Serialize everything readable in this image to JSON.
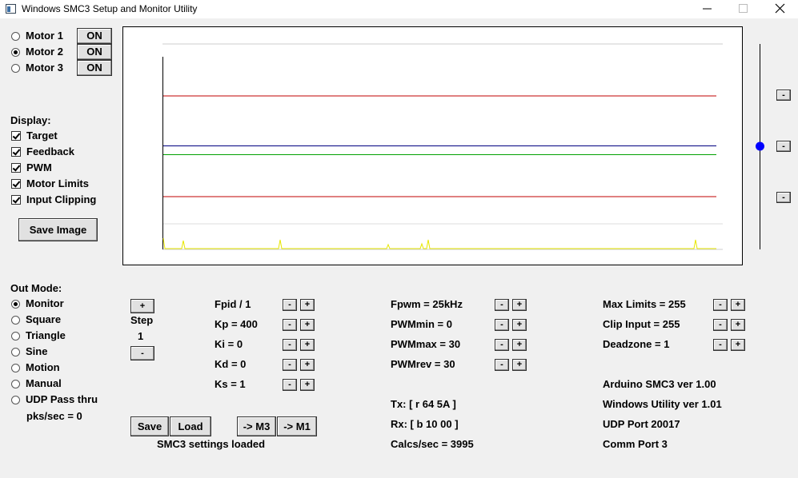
{
  "window": {
    "title": "Windows SMC3 Setup and Monitor Utility"
  },
  "motors": [
    {
      "label": "Motor 1",
      "button": "ON",
      "selected": false
    },
    {
      "label": "Motor 2",
      "button": "ON",
      "selected": true
    },
    {
      "label": "Motor 3",
      "button": "ON",
      "selected": false
    }
  ],
  "display": {
    "heading": "Display:",
    "options": [
      {
        "label": "Target",
        "checked": true
      },
      {
        "label": "Feedback",
        "checked": true
      },
      {
        "label": "PWM",
        "checked": true
      },
      {
        "label": "Motor Limits",
        "checked": true
      },
      {
        "label": "Input Clipping",
        "checked": true
      }
    ],
    "save_button": "Save Image"
  },
  "out_mode": {
    "heading": "Out Mode:",
    "options": [
      {
        "label": "Monitor",
        "selected": true
      },
      {
        "label": "Square",
        "selected": false
      },
      {
        "label": "Triangle",
        "selected": false
      },
      {
        "label": "Sine",
        "selected": false
      },
      {
        "label": "Motion",
        "selected": false
      },
      {
        "label": "Manual",
        "selected": false
      },
      {
        "label": "UDP Pass thru",
        "selected": false
      }
    ],
    "rate": "pks/sec = 0"
  },
  "step": {
    "plus": "+",
    "label": "Step",
    "value": 1,
    "minus": "-"
  },
  "pid": [
    {
      "label": "Fpid / 1",
      "minus": "-",
      "plus": "+"
    },
    {
      "label": "Kp = 400",
      "minus": "-",
      "plus": "+"
    },
    {
      "label": "Ki = 0",
      "minus": "-",
      "plus": "+"
    },
    {
      "label": "Kd = 0",
      "minus": "-",
      "plus": "+"
    },
    {
      "label": "Ks = 1",
      "minus": "-",
      "plus": "+"
    }
  ],
  "pwm": [
    {
      "label": "Fpwm = 25kHz",
      "minus": "-",
      "plus": "+"
    },
    {
      "label": "PWMmin = 0",
      "minus": "-",
      "plus": "+"
    },
    {
      "label": "PWMmax = 30",
      "minus": "-",
      "plus": "+"
    },
    {
      "label": "PWMrev = 30",
      "minus": "-",
      "plus": "+"
    }
  ],
  "limits": [
    {
      "label": "Max Limits = 255",
      "minus": "-",
      "plus": "+"
    },
    {
      "label": "Clip Input = 255",
      "minus": "-",
      "plus": "+"
    },
    {
      "label": "Deadzone = 1",
      "minus": "-",
      "plus": "+"
    }
  ],
  "buttons": {
    "save": "Save",
    "load": "Load",
    "to_m3": "-> M3",
    "to_m1": "-> M1"
  },
  "status": "SMC3 settings loaded",
  "comms": [
    "Tx: [ r 64 5A ]",
    "Rx: [ b 10 00 ]",
    "Calcs/sec = 3995"
  ],
  "info": [
    "Arduino SMC3 ver 1.00",
    "Windows Utility ver 1.01",
    "UDP Port 20017",
    "Comm Port 3"
  ],
  "slider_buttons": [
    "-",
    "-",
    "-"
  ]
}
